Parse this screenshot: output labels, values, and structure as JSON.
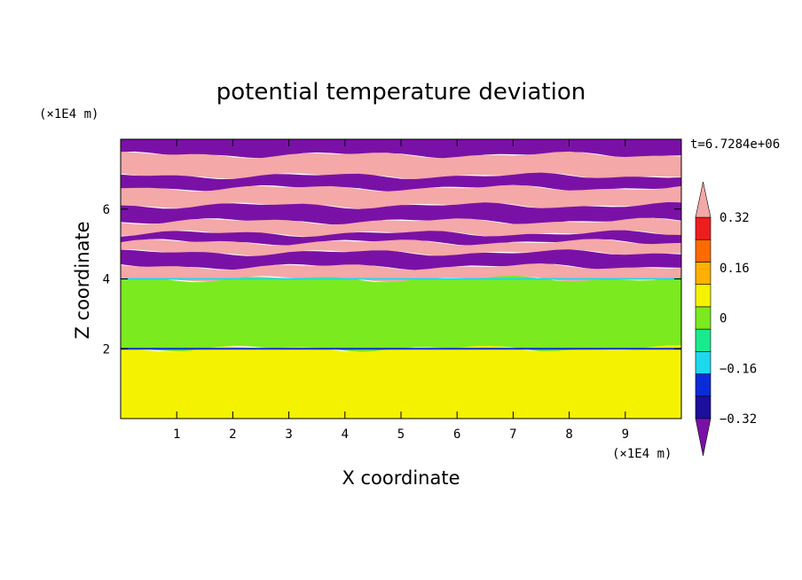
{
  "chart_data": {
    "type": "heatmap",
    "title": "potential temperature deviation",
    "xlabel": "X coordinate",
    "ylabel": "Z coordinate",
    "x_unit": "(×1E4 m)",
    "y_unit": "(×1E4 m)",
    "xlim": [
      0,
      10
    ],
    "ylim": [
      0,
      8
    ],
    "x_ticks": [
      1,
      2,
      3,
      4,
      5,
      6,
      7,
      8,
      9
    ],
    "y_ticks": [
      2,
      4,
      6
    ],
    "time_label": "t=6.7284e+06",
    "colorbar": {
      "levels": [
        -0.4,
        -0.32,
        -0.24,
        -0.16,
        -0.08,
        0,
        0.08,
        0.16,
        0.24,
        0.32,
        0.4
      ],
      "tick_labels": [
        "0.32",
        "0.16",
        "0",
        "−0.16",
        "−0.32"
      ],
      "tick_values": [
        0.32,
        0.16,
        0,
        -0.16,
        -0.32
      ],
      "colors_bottom_to_top": [
        "#7a11a6",
        "#1c0f9e",
        "#0a2cd8",
        "#1ed8ee",
        "#1aea8f",
        "#7bea1f",
        "#f5f200",
        "#ffb000",
        "#ff6a00",
        "#ec1f1f",
        "#f4a8a8"
      ],
      "extend": "both"
    },
    "field_bands": [
      {
        "y": [
          7.55,
          8.0
        ],
        "value": -0.4
      },
      {
        "y": [
          6.95,
          7.55
        ],
        "value": 0.4
      },
      {
        "y": [
          6.6,
          6.95
        ],
        "value": -0.4
      },
      {
        "y": [
          6.1,
          6.6
        ],
        "value": 0.4
      },
      {
        "y": [
          5.65,
          6.1
        ],
        "value": -0.4
      },
      {
        "y": [
          5.3,
          5.65
        ],
        "value": 0.4
      },
      {
        "y": [
          5.05,
          5.3
        ],
        "value": -0.4
      },
      {
        "y": [
          4.75,
          5.05
        ],
        "value": 0.4
      },
      {
        "y": [
          4.35,
          4.75
        ],
        "value": -0.4
      },
      {
        "y": [
          4.0,
          4.35
        ],
        "value": 0.4
      },
      {
        "y": [
          2.0,
          4.0
        ],
        "value": -0.04
      },
      {
        "y": [
          0.0,
          2.0
        ],
        "value": 0.04
      }
    ]
  }
}
